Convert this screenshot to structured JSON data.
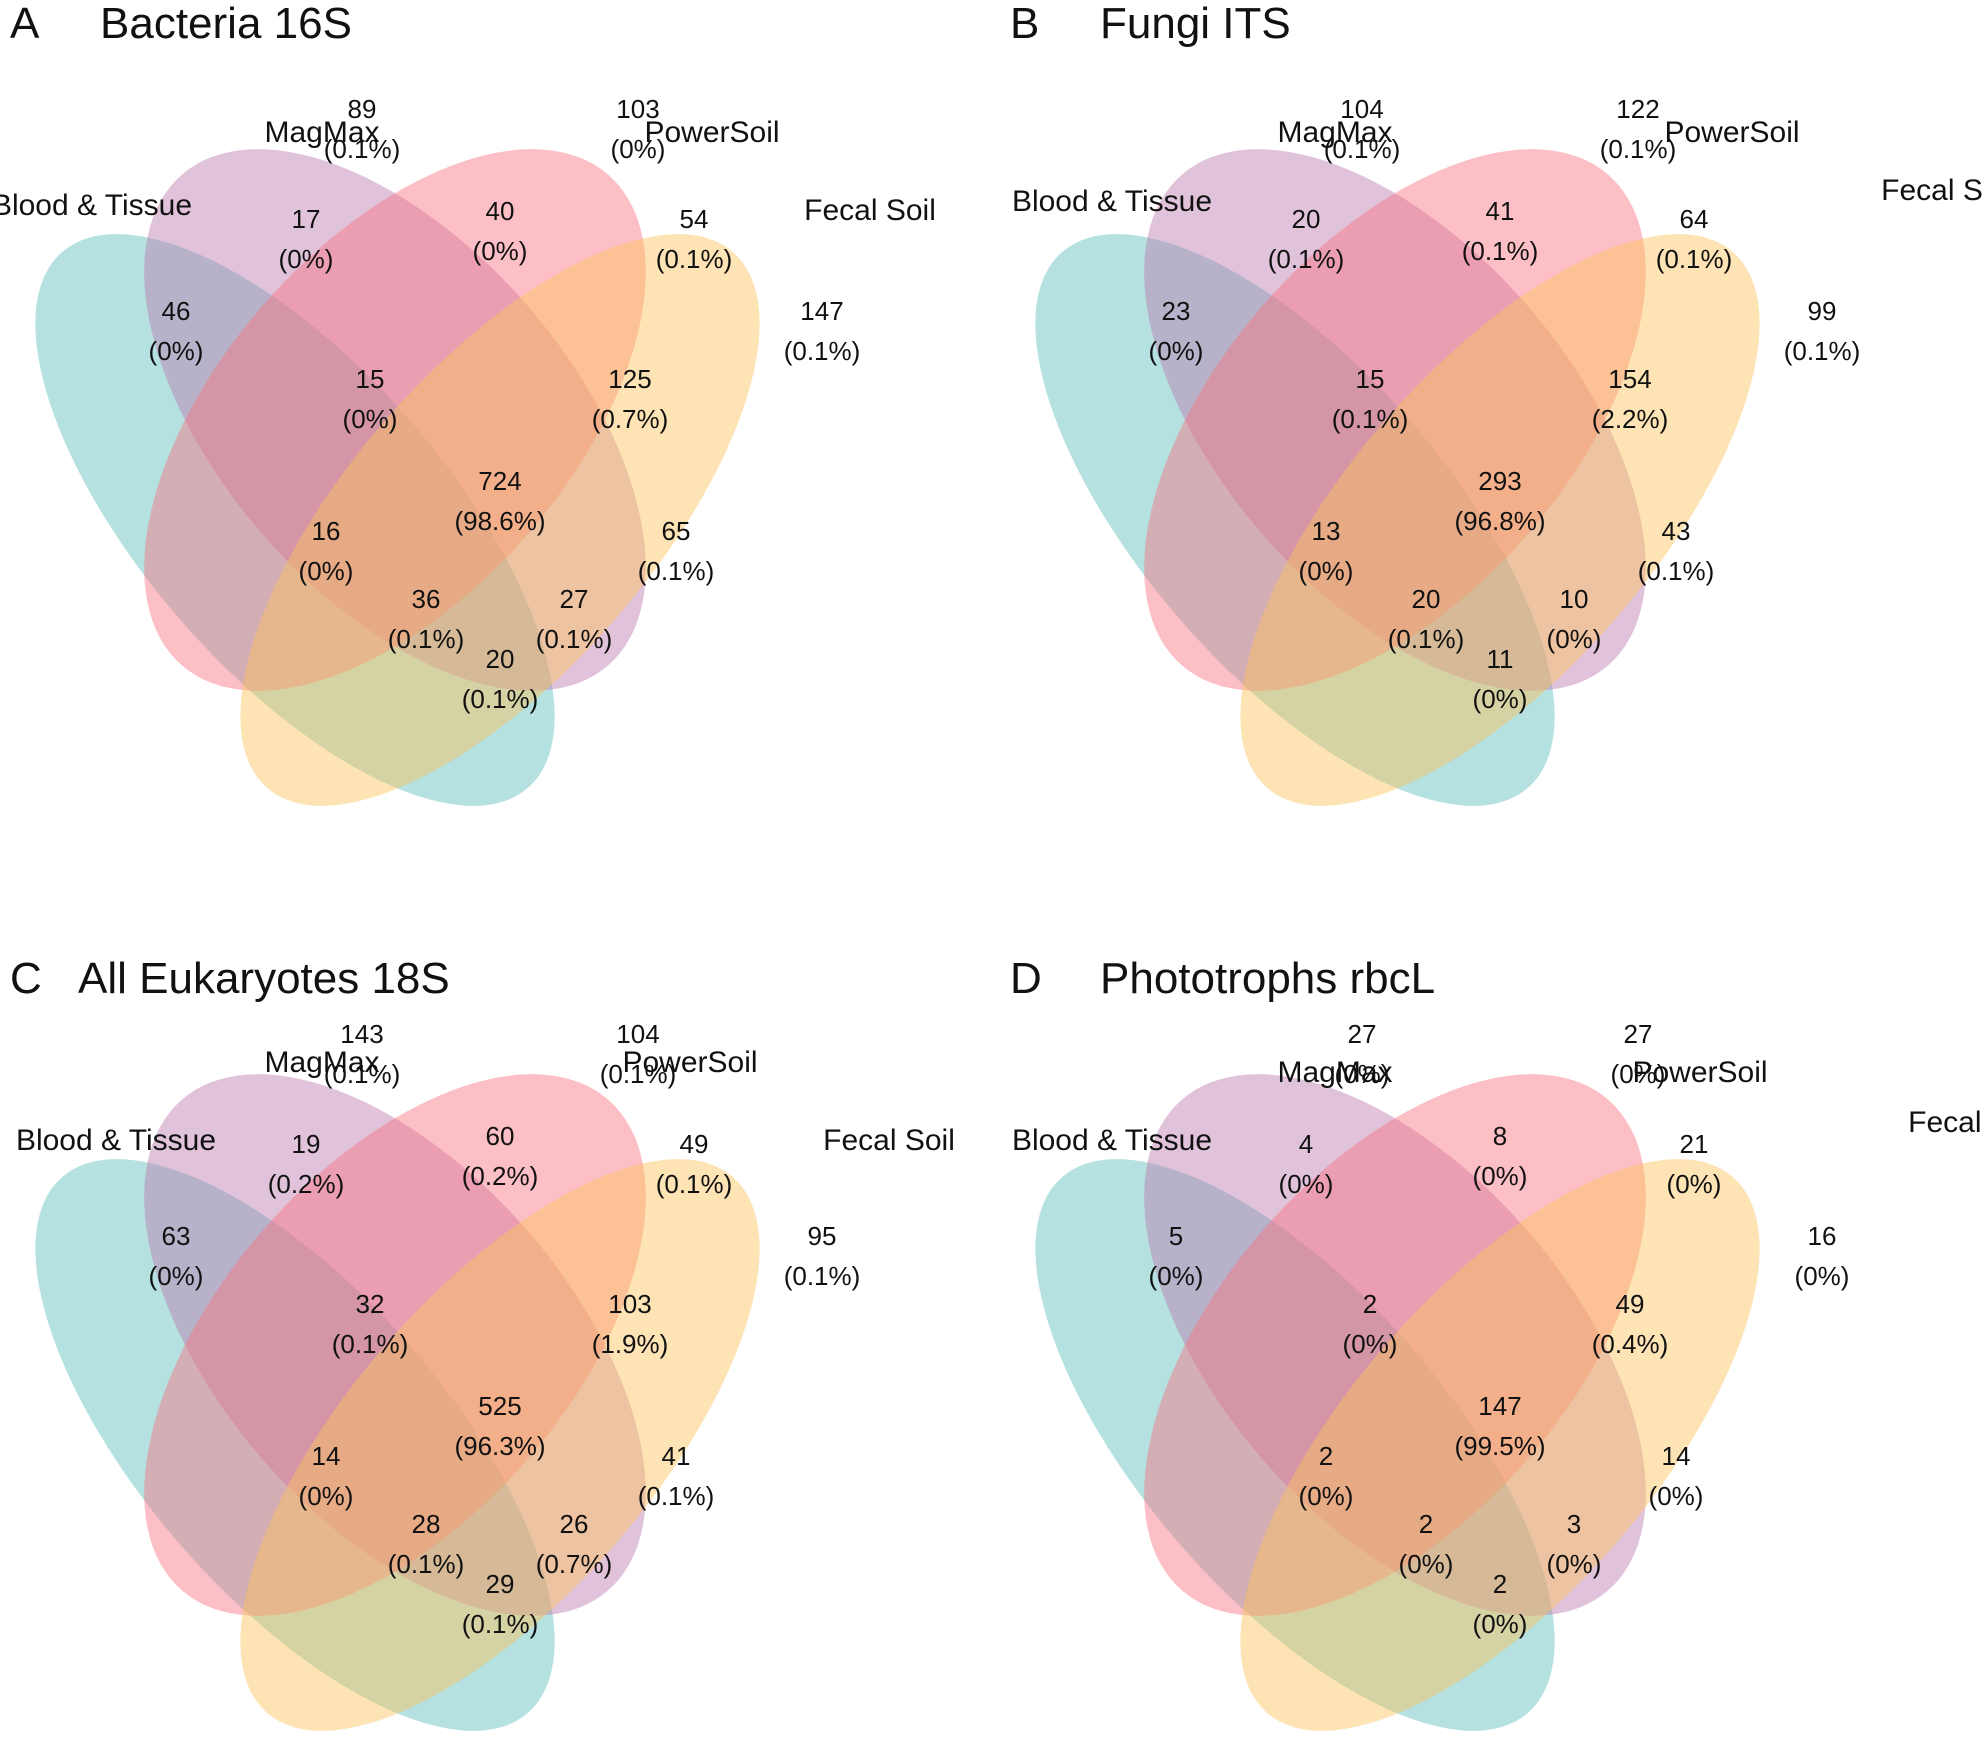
{
  "colors": {
    "Blood & Tissue": "#5BBCBA",
    "MagMax": "#BA79AE",
    "PowerSoil": "#F8707E",
    "Fecal Soil": "#FDC35B"
  },
  "region_keys": [
    "B",
    "M",
    "P",
    "F",
    "BM",
    "MP",
    "PF",
    "BMP",
    "MPF",
    "BMPF",
    "BP",
    "MF",
    "BPF",
    "BMF",
    "BF"
  ],
  "chart_data": [
    {
      "type": "venn",
      "letter": "A",
      "title": "Bacteria 16S",
      "sets": [
        "Blood & Tissue",
        "MagMax",
        "PowerSoil",
        "Fecal Soil"
      ],
      "regions": {
        "B": {
          "count": "46",
          "percent": "(0%)"
        },
        "M": {
          "count": "89",
          "percent": "(0.1%)"
        },
        "P": {
          "count": "103",
          "percent": "(0%)"
        },
        "F": {
          "count": "147",
          "percent": "(0.1%)"
        },
        "BM": {
          "count": "17",
          "percent": "(0%)"
        },
        "MP": {
          "count": "40",
          "percent": "(0%)"
        },
        "PF": {
          "count": "54",
          "percent": "(0.1%)"
        },
        "BMP": {
          "count": "15",
          "percent": "(0%)"
        },
        "MPF": {
          "count": "125",
          "percent": "(0.7%)"
        },
        "BMPF": {
          "count": "724",
          "percent": "(98.6%)"
        },
        "BP": {
          "count": "16",
          "percent": "(0%)"
        },
        "MF": {
          "count": "65",
          "percent": "(0.1%)"
        },
        "BPF": {
          "count": "36",
          "percent": "(0.1%)"
        },
        "BMF": {
          "count": "27",
          "percent": "(0.1%)"
        },
        "BF": {
          "count": "20",
          "percent": "(0.1%)"
        }
      }
    },
    {
      "type": "venn",
      "letter": "B",
      "title": "Fungi ITS",
      "sets": [
        "Blood & Tissue",
        "MagMax",
        "PowerSoil",
        "Fecal Soil"
      ],
      "regions": {
        "B": {
          "count": "23",
          "percent": "(0%)"
        },
        "M": {
          "count": "104",
          "percent": "(0.1%)"
        },
        "P": {
          "count": "122",
          "percent": "(0.1%)"
        },
        "F": {
          "count": "99",
          "percent": "(0.1%)"
        },
        "BM": {
          "count": "20",
          "percent": "(0.1%)"
        },
        "MP": {
          "count": "41",
          "percent": "(0.1%)"
        },
        "PF": {
          "count": "64",
          "percent": "(0.1%)"
        },
        "BMP": {
          "count": "15",
          "percent": "(0.1%)"
        },
        "MPF": {
          "count": "154",
          "percent": "(2.2%)"
        },
        "BMPF": {
          "count": "293",
          "percent": "(96.8%)"
        },
        "BP": {
          "count": "13",
          "percent": "(0%)"
        },
        "MF": {
          "count": "43",
          "percent": "(0.1%)"
        },
        "BPF": {
          "count": "20",
          "percent": "(0.1%)"
        },
        "BMF": {
          "count": "10",
          "percent": "(0%)"
        },
        "BF": {
          "count": "11",
          "percent": "(0%)"
        }
      }
    },
    {
      "type": "venn",
      "letter": "C",
      "title": "All Eukaryotes 18S",
      "sets": [
        "Blood & Tissue",
        "MagMax",
        "PowerSoil",
        "Fecal Soil"
      ],
      "regions": {
        "B": {
          "count": "63",
          "percent": "(0%)"
        },
        "M": {
          "count": "143",
          "percent": "(0.1%)"
        },
        "P": {
          "count": "104",
          "percent": "(0.1%)"
        },
        "F": {
          "count": "95",
          "percent": "(0.1%)"
        },
        "BM": {
          "count": "19",
          "percent": "(0.2%)"
        },
        "MP": {
          "count": "60",
          "percent": "(0.2%)"
        },
        "PF": {
          "count": "49",
          "percent": "(0.1%)"
        },
        "BMP": {
          "count": "32",
          "percent": "(0.1%)"
        },
        "MPF": {
          "count": "103",
          "percent": "(1.9%)"
        },
        "BMPF": {
          "count": "525",
          "percent": "(96.3%)"
        },
        "BP": {
          "count": "14",
          "percent": "(0%)"
        },
        "MF": {
          "count": "41",
          "percent": "(0.1%)"
        },
        "BPF": {
          "count": "28",
          "percent": "(0.1%)"
        },
        "BMF": {
          "count": "26",
          "percent": "(0.7%)"
        },
        "BF": {
          "count": "29",
          "percent": "(0.1%)"
        }
      }
    },
    {
      "type": "venn",
      "letter": "D",
      "title": "Phototrophs rbcL",
      "sets": [
        "Blood & Tissue",
        "MagMax",
        "PowerSoil",
        "Fecal Soil"
      ],
      "regions": {
        "B": {
          "count": "5",
          "percent": "(0%)"
        },
        "M": {
          "count": "27",
          "percent": "(0%)"
        },
        "P": {
          "count": "27",
          "percent": "(0%)"
        },
        "F": {
          "count": "16",
          "percent": "(0%)"
        },
        "BM": {
          "count": "4",
          "percent": "(0%)"
        },
        "MP": {
          "count": "8",
          "percent": "(0%)"
        },
        "PF": {
          "count": "21",
          "percent": "(0%)"
        },
        "BMP": {
          "count": "2",
          "percent": "(0%)"
        },
        "MPF": {
          "count": "49",
          "percent": "(0.4%)"
        },
        "BMPF": {
          "count": "147",
          "percent": "(99.5%)"
        },
        "BP": {
          "count": "2",
          "percent": "(0%)"
        },
        "MF": {
          "count": "14",
          "percent": "(0%)"
        },
        "BPF": {
          "count": "2",
          "percent": "(0%)"
        },
        "BMF": {
          "count": "3",
          "percent": "(0%)"
        },
        "BF": {
          "count": "2",
          "percent": "(0%)"
        }
      }
    }
  ]
}
